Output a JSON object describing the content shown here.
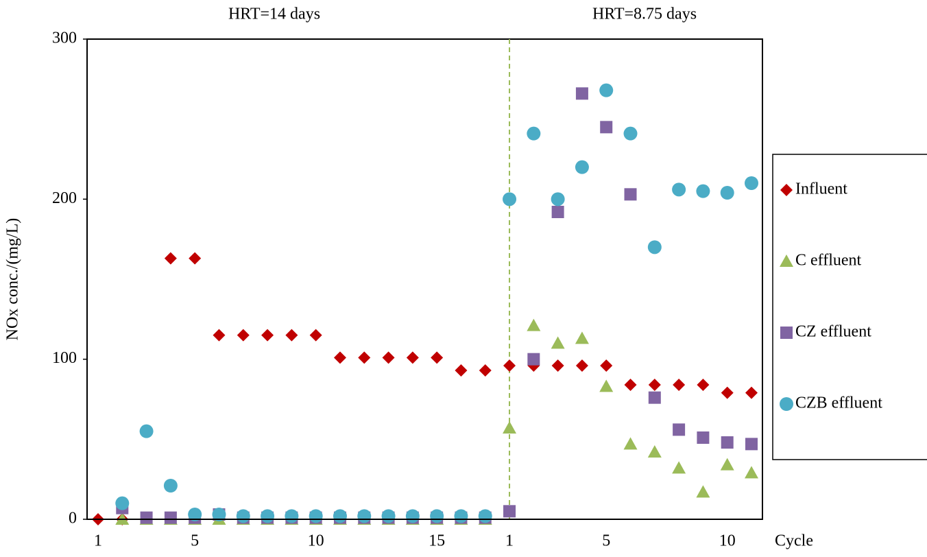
{
  "chart_data": {
    "type": "scatter",
    "annotations": [
      "HRT=14 days",
      "HRT=8.75 days"
    ],
    "y_label": "NOx conc./(mg/L)",
    "x_label": "Cycle",
    "categories": [
      "1",
      null,
      null,
      null,
      "5",
      null,
      null,
      null,
      null,
      "10",
      null,
      null,
      null,
      null,
      "15",
      null,
      null,
      "1",
      null,
      null,
      null,
      "5",
      null,
      null,
      null,
      null,
      "10",
      null
    ],
    "ylim": [
      0,
      300
    ],
    "yticks": [
      0,
      100,
      200,
      300
    ],
    "series": [
      {
        "name": "Influent",
        "color": "#c00000",
        "marker": "diamond",
        "values": [
          0,
          0,
          null,
          163,
          163,
          115,
          115,
          115,
          115,
          115,
          101,
          101,
          101,
          101,
          101,
          93,
          93,
          96,
          96,
          96,
          96,
          96,
          84,
          84,
          84,
          84,
          79,
          79
        ]
      },
      {
        "name": "C effluent",
        "color": "#9bbb59",
        "marker": "triangle",
        "values": [
          null,
          0,
          0,
          0,
          0,
          0,
          0,
          0,
          0,
          0,
          0,
          0,
          0,
          0,
          0,
          0,
          0,
          57,
          121,
          110,
          113,
          83,
          47,
          42,
          32,
          17,
          34,
          29
        ]
      },
      {
        "name": "CZ effluent",
        "color": "#8064a2",
        "marker": "square",
        "values": [
          null,
          7,
          1,
          1,
          1,
          3,
          1,
          1,
          1,
          1,
          1,
          1,
          1,
          1,
          1,
          1,
          1,
          5,
          100,
          192,
          266,
          245,
          203,
          76,
          56,
          51,
          48,
          47
        ]
      },
      {
        "name": "CZB effluent",
        "color": "#4bacc6",
        "marker": "circle",
        "values": [
          null,
          10,
          55,
          21,
          3,
          3,
          2,
          2,
          2,
          2,
          2,
          2,
          2,
          2,
          2,
          2,
          2,
          200,
          241,
          200,
          220,
          268,
          241,
          170,
          206,
          205,
          204,
          210
        ]
      }
    ]
  }
}
